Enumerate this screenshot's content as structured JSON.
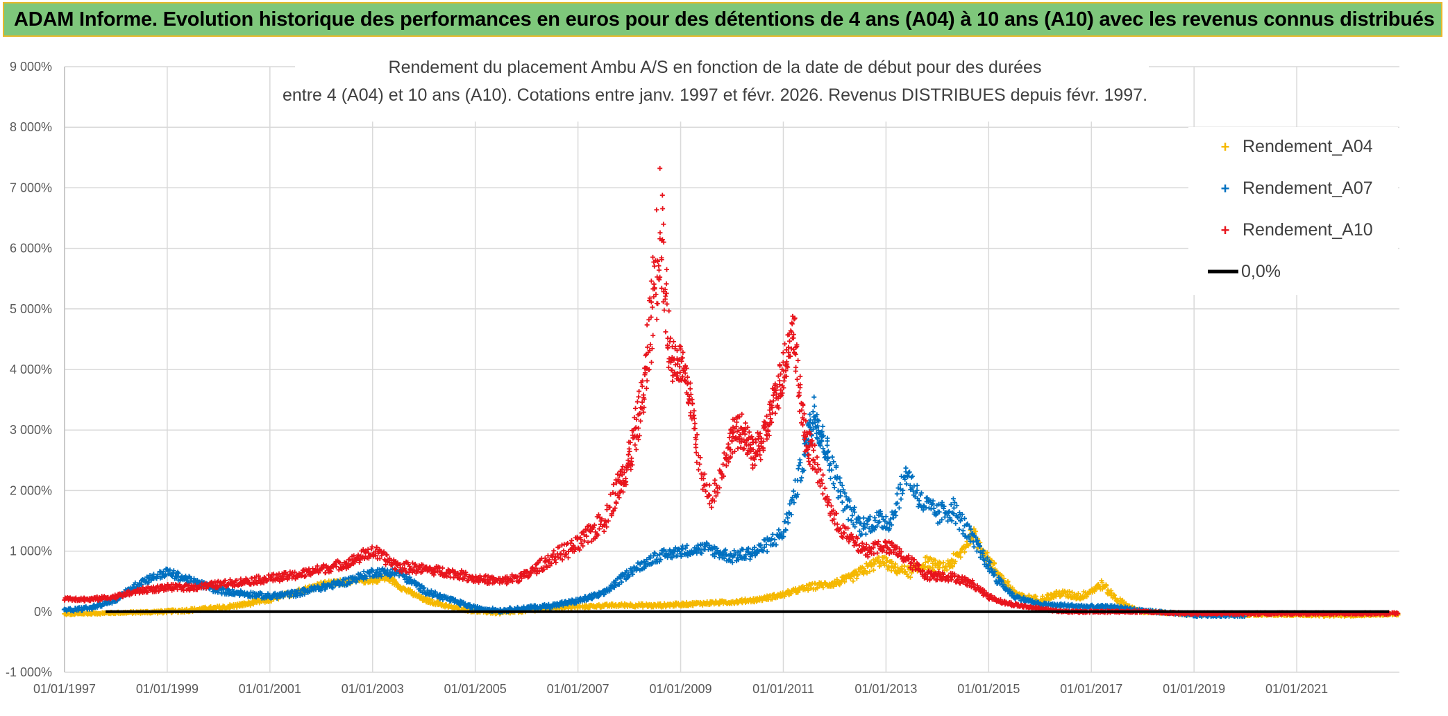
{
  "banner": {
    "title": "ADAM Informe. Evolution historique des performances en euros pour des détentions de 4 ans (A04) à 10 ans (A10) avec les revenus connus distribués"
  },
  "colors": {
    "banner_bg": "#7ec77b",
    "banner_border": "#e7b82b",
    "A04": "#f5b800",
    "A07": "#0070c0",
    "A10": "#e8141c",
    "zero": "#000000",
    "grid": "#d9d9d9"
  },
  "chart_data": {
    "type": "scatter",
    "title_line1": "Rendement du placement Ambu A/S en fonction de la date de début pour des durées",
    "title_line2": "entre 4 (A04) et 10 ans (A10). Cotations entre janv. 1997 et févr. 2026. Revenus DISTRIBUES depuis févr. 1997.",
    "xlim": [
      1997.0,
      2023.0
    ],
    "ylim": [
      -1000,
      9000
    ],
    "y_ticks": [
      {
        "value": 9000,
        "label": "9 000%"
      },
      {
        "value": 8000,
        "label": "8 000%"
      },
      {
        "value": 7000,
        "label": "7 000%"
      },
      {
        "value": 6000,
        "label": "6 000%"
      },
      {
        "value": 5000,
        "label": "5 000%"
      },
      {
        "value": 4000,
        "label": "4 000%"
      },
      {
        "value": 3000,
        "label": "3 000%"
      },
      {
        "value": 2000,
        "label": "2 000%"
      },
      {
        "value": 1000,
        "label": "1 000%"
      },
      {
        "value": 0,
        "label": "0%"
      },
      {
        "value": -1000,
        "label": "-1 000%"
      }
    ],
    "x_ticks": [
      {
        "value": 1997,
        "label": "01/01/1997"
      },
      {
        "value": 1999,
        "label": "01/01/1999"
      },
      {
        "value": 2001,
        "label": "01/01/2001"
      },
      {
        "value": 2003,
        "label": "01/01/2003"
      },
      {
        "value": 2005,
        "label": "01/01/2005"
      },
      {
        "value": 2007,
        "label": "01/01/2007"
      },
      {
        "value": 2009,
        "label": "01/01/2009"
      },
      {
        "value": 2011,
        "label": "01/01/2011"
      },
      {
        "value": 2013,
        "label": "01/01/2013"
      },
      {
        "value": 2015,
        "label": "01/01/2015"
      },
      {
        "value": 2017,
        "label": "01/01/2017"
      },
      {
        "value": 2019,
        "label": "01/01/2019"
      },
      {
        "value": 2021,
        "label": "01/01/2021"
      }
    ],
    "legend": [
      {
        "name": "Rendement_A04",
        "marker": "+"
      },
      {
        "name": "Rendement_A07",
        "marker": "+"
      },
      {
        "name": "Rendement_A10",
        "marker": "+"
      },
      {
        "name": "0,0%",
        "marker": "line"
      }
    ],
    "series": [
      {
        "name": "Rendement_A04",
        "x": [
          1997.0,
          1997.5,
          1998.0,
          1998.5,
          1999.0,
          1999.5,
          2000.0,
          2000.5,
          2001.0,
          2001.5,
          2002.0,
          2002.5,
          2003.0,
          2003.3,
          2003.6,
          2004.0,
          2004.5,
          2005.0,
          2005.5,
          2006.0,
          2006.5,
          2007.0,
          2007.5,
          2008.0,
          2008.5,
          2009.0,
          2009.5,
          2010.0,
          2010.5,
          2011.0,
          2011.3,
          2011.6,
          2012.0,
          2012.3,
          2012.6,
          2012.9,
          2013.2,
          2013.5,
          2013.8,
          2014.1,
          2014.4,
          2014.7,
          2015.0,
          2015.3,
          2015.6,
          2016.0,
          2016.4,
          2016.8,
          2017.0,
          2017.2,
          2017.5,
          2017.8,
          2018.0,
          2018.5,
          2019.0,
          2019.5,
          2020.0,
          2020.5,
          2021.0,
          2021.5,
          2022.0,
          2022.5,
          2023.0
        ],
        "y": [
          -40,
          -30,
          -20,
          -10,
          0,
          30,
          60,
          120,
          200,
          320,
          450,
          500,
          520,
          560,
          380,
          200,
          80,
          10,
          -20,
          20,
          60,
          80,
          100,
          110,
          100,
          120,
          140,
          160,
          200,
          280,
          360,
          420,
          470,
          550,
          700,
          850,
          700,
          650,
          820,
          700,
          900,
          1300,
          850,
          500,
          250,
          200,
          300,
          250,
          350,
          450,
          200,
          50,
          0,
          -20,
          -50,
          -50,
          -50,
          -50,
          -50,
          -60,
          -60,
          -50,
          -40
        ],
        "noise": [
          15,
          15,
          15,
          20,
          25,
          30,
          35,
          35,
          40,
          45,
          45,
          45,
          45,
          50,
          45,
          35,
          30,
          25,
          25,
          25,
          25,
          25,
          25,
          30,
          30,
          30,
          30,
          30,
          35,
          40,
          45,
          55,
          55,
          70,
          90,
          100,
          80,
          90,
          100,
          100,
          110,
          120,
          90,
          70,
          50,
          50,
          60,
          60,
          60,
          70,
          50,
          30,
          20,
          15,
          15,
          15,
          15,
          15,
          15,
          15,
          15,
          15,
          15
        ]
      },
      {
        "name": "Rendement_A07",
        "x": [
          1997.0,
          1997.5,
          1998.0,
          1998.5,
          1999.0,
          1999.5,
          2000.0,
          2000.5,
          2001.0,
          2001.5,
          2002.0,
          2002.5,
          2003.0,
          2003.5,
          2004.0,
          2004.5,
          2005.0,
          2005.5,
          2006.0,
          2006.5,
          2007.0,
          2007.5,
          2008.0,
          2008.5,
          2009.0,
          2009.5,
          2010.0,
          2010.5,
          2011.0,
          2011.3,
          2011.6,
          2011.9,
          2012.2,
          2012.5,
          2012.8,
          2013.1,
          2013.4,
          2013.7,
          2014.0,
          2014.3,
          2014.6,
          2014.9,
          2015.2,
          2015.5,
          2016.0,
          2016.5,
          2017.0,
          2017.5,
          2018.0,
          2018.5,
          2019.0,
          2019.5,
          2020.0
        ],
        "y": [
          20,
          60,
          200,
          500,
          650,
          500,
          350,
          300,
          250,
          300,
          400,
          500,
          650,
          650,
          350,
          200,
          60,
          20,
          60,
          100,
          180,
          300,
          650,
          900,
          1000,
          1050,
          900,
          1000,
          1300,
          2200,
          3300,
          2500,
          1800,
          1400,
          1500,
          1500,
          2300,
          1800,
          1600,
          1700,
          1300,
          900,
          500,
          250,
          120,
          100,
          80,
          70,
          20,
          -20,
          -60,
          -60,
          -60
        ],
        "noise": [
          25,
          30,
          40,
          60,
          70,
          60,
          50,
          45,
          45,
          50,
          55,
          60,
          70,
          70,
          50,
          40,
          30,
          30,
          30,
          35,
          40,
          50,
          70,
          90,
          90,
          100,
          100,
          110,
          140,
          220,
          300,
          250,
          200,
          150,
          160,
          170,
          220,
          200,
          180,
          200,
          160,
          110,
          70,
          40,
          30,
          30,
          30,
          30,
          20,
          20,
          20,
          20,
          20
        ]
      },
      {
        "name": "Rendement_A10",
        "x": [
          1997.0,
          1997.5,
          1998.0,
          1998.5,
          1999.0,
          1999.5,
          2000.0,
          2000.5,
          2001.0,
          2001.5,
          2002.0,
          2002.5,
          2003.0,
          2003.5,
          2004.0,
          2004.5,
          2005.0,
          2005.5,
          2006.0,
          2006.5,
          2007.0,
          2007.5,
          2008.0,
          2008.3,
          2008.6,
          2008.8,
          2009.0,
          2009.2,
          2009.4,
          2009.6,
          2009.8,
          2010.0,
          2010.2,
          2010.4,
          2010.6,
          2010.8,
          2011.0,
          2011.2,
          2011.4,
          2011.6,
          2011.8,
          2012.0,
          2012.3,
          2012.6,
          2012.9,
          2013.2,
          2013.5,
          2013.8,
          2014.1,
          2014.4,
          2014.7,
          2015.0,
          2015.3,
          2015.6,
          2016.0,
          2016.5,
          2017.0,
          2017.5,
          2018.0,
          2018.5,
          2019.0,
          2019.5,
          2020.0,
          2020.5,
          2021.0,
          2021.5,
          2022.0,
          2022.5,
          2023.0
        ],
        "y": [
          220,
          200,
          250,
          350,
          400,
          400,
          450,
          500,
          550,
          600,
          700,
          800,
          1000,
          750,
          700,
          650,
          550,
          500,
          600,
          900,
          1100,
          1500,
          2500,
          3700,
          6500,
          4200,
          4100,
          3500,
          2200,
          1900,
          2300,
          2900,
          3000,
          2600,
          2800,
          3400,
          4000,
          4700,
          3000,
          2500,
          2000,
          1500,
          1200,
          1000,
          1100,
          1000,
          800,
          600,
          600,
          550,
          450,
          250,
          150,
          100,
          50,
          0,
          0,
          0,
          0,
          -20,
          -30,
          -30,
          -30,
          -30,
          -30,
          -30,
          -30,
          -30,
          -30
        ],
        "noise": [
          30,
          30,
          35,
          45,
          50,
          50,
          55,
          60,
          65,
          70,
          75,
          85,
          110,
          90,
          80,
          75,
          70,
          65,
          80,
          120,
          150,
          200,
          300,
          450,
          1200,
          400,
          350,
          300,
          220,
          180,
          220,
          280,
          280,
          250,
          260,
          320,
          380,
          400,
          300,
          250,
          200,
          160,
          130,
          110,
          120,
          110,
          100,
          80,
          80,
          70,
          60,
          40,
          30,
          25,
          20,
          15,
          15,
          15,
          15,
          15,
          15,
          15,
          15,
          15,
          15,
          15,
          15,
          15,
          15
        ]
      },
      {
        "name": "0,0%",
        "x": [
          1997.8,
          2022.8
        ],
        "y": [
          0,
          0
        ]
      }
    ]
  }
}
